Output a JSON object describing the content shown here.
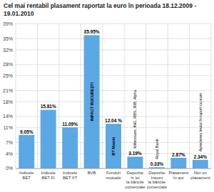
{
  "chart_data": {
    "type": "bar",
    "title": "Cel mai rentabil plasament raportat la euro în perioada 18.12.2009 - 19.01.2010",
    "categories": [
      "Indicele\nBET",
      "Indicele\nBET FI",
      "Indicele\nBET XT",
      "BVB",
      "Fonduri\nmutuale",
      "Depozite\nîn lei\nla băncile\ncomerciale",
      "Depozite\nîneuro\nla băncile\ncomerciale",
      "Plasament\nîn aur",
      "Nici un\nplasament"
    ],
    "values": [
      9.05,
      15.81,
      11.09,
      35.95,
      12.04,
      3.19,
      0.33,
      2.87,
      2.34
    ],
    "value_labels": [
      "9.05%",
      "15.81%",
      "11.09%",
      "35.95%",
      "12.04 %",
      "3.19%",
      "0.33%",
      "2.87%",
      "2.34%"
    ],
    "color": "#5ba8e5",
    "data_labels": true,
    "annotations": [
      {
        "category": "BVB",
        "text": "IMPACT BUCUREȘTI"
      },
      {
        "category": "Fonduri\nmutuale",
        "text": "BT Maxim"
      },
      {
        "category": "Depozite\nîn lei\nla băncile\ncomerciale",
        "text": "Millennium, ING, RBS, RIB, Alpha"
      },
      {
        "category": "Depozite\nîneuro\nla băncile\ncomerciale",
        "text": "Royal Bank"
      },
      {
        "category": "Nici un\nplasament",
        "text": "Aprecierea leului în raport cu euro"
      }
    ],
    "ylim": [
      0,
      39
    ],
    "yticks": [
      {
        "value": 0,
        "label": "0%"
      },
      {
        "value": 4,
        "label": "4%"
      },
      {
        "value": 7,
        "label": "7%"
      },
      {
        "value": 11,
        "label": "11%"
      },
      {
        "value": 14,
        "label": "14%"
      },
      {
        "value": 18,
        "label": "18%"
      },
      {
        "value": 21,
        "label": "21%"
      },
      {
        "value": 25,
        "label": "25%"
      },
      {
        "value": 28,
        "label": "28%"
      },
      {
        "value": 32,
        "label": "32%"
      },
      {
        "value": 35,
        "label": "35%"
      },
      {
        "value": 39,
        "label": "39%"
      }
    ],
    "grid": true
  }
}
